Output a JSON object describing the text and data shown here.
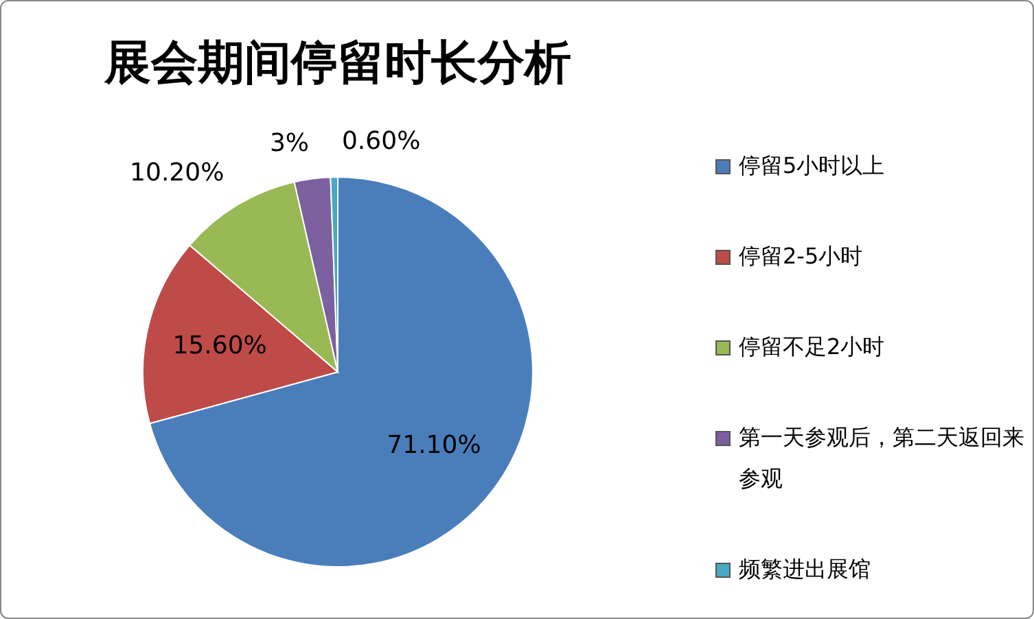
{
  "chart_data": {
    "type": "pie",
    "title": "展会期间停留时长分析",
    "categories": [
      "停留5小时以上",
      "停留2-5小时",
      "停留不足2小时",
      "第一天参观后，第二天返回来参观",
      "频繁进出展馆"
    ],
    "values": [
      71.1,
      15.6,
      10.2,
      3,
      0.6
    ],
    "value_labels": [
      "71.10%",
      "15.60%",
      "10.20%",
      "3%",
      "0.60%"
    ],
    "colors": [
      "#4a7ebb",
      "#be4b48",
      "#98b954",
      "#7d60a0",
      "#46aac5"
    ],
    "legend": "right"
  }
}
